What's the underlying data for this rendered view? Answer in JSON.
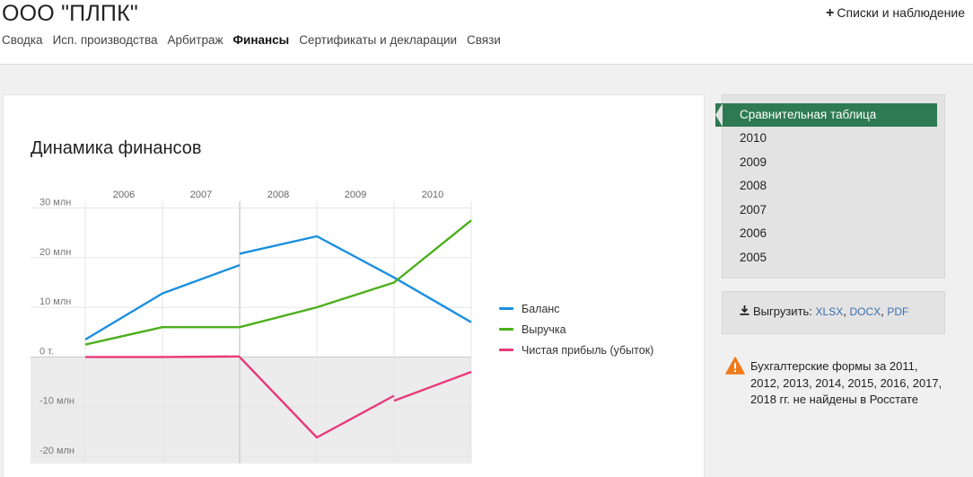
{
  "header": {
    "company_name": "ООО \"ПЛПК\"",
    "lists_label": "Списки и наблюдение",
    "nav": [
      {
        "label": "Сводка",
        "active": false
      },
      {
        "label": "Исп. производства",
        "active": false
      },
      {
        "label": "Арбитраж",
        "active": false
      },
      {
        "label": "Финансы",
        "active": true
      },
      {
        "label": "Сертификаты и декларации",
        "active": false
      },
      {
        "label": "Связи",
        "active": false
      }
    ]
  },
  "finance": {
    "title": "Динамика финансов"
  },
  "chart_data": {
    "type": "line",
    "title": "Динамика финансов",
    "categories": [
      "2006",
      "2007",
      "2008",
      "2009",
      "2010"
    ],
    "y_tick_labels": [
      "30 млн",
      "20 млн",
      "10 млн",
      "0 т.",
      "-10 млн",
      "-20 млн"
    ],
    "y_ticks": [
      30,
      20,
      10,
      0,
      -10,
      -20
    ],
    "ylim": [
      -20,
      30
    ],
    "y_unit": "млн",
    "legend_position": "right",
    "series": [
      {
        "name": "Баланс",
        "color": "#1a8fe0",
        "segments": [
          [
            [
              2005.5,
              3.5
            ],
            [
              2006.5,
              12.8
            ],
            [
              2007.5,
              18.5
            ]
          ],
          [
            [
              2007.5,
              20.8
            ],
            [
              2008.5,
              24.3
            ],
            [
              2009.5,
              16.0
            ],
            [
              2010.5,
              7.0
            ]
          ]
        ]
      },
      {
        "name": "Выручка",
        "color": "#4caf1c",
        "segments": [
          [
            [
              2005.5,
              2.5
            ],
            [
              2006.5,
              6.0
            ],
            [
              2007.5,
              6.0
            ],
            [
              2008.5,
              10.0
            ],
            [
              2009.5,
              15.0
            ],
            [
              2010.5,
              27.5
            ]
          ]
        ]
      },
      {
        "name": "Чистая прибыль (убыток)",
        "color": "#e8397b",
        "segments": [
          [
            [
              2005.5,
              0
            ],
            [
              2006.5,
              0
            ],
            [
              2007.5,
              0.1
            ]
          ],
          [
            [
              2007.5,
              0
            ],
            [
              2008.5,
              -16.2
            ],
            [
              2009.5,
              -7.8
            ]
          ],
          [
            [
              2009.5,
              -8.8
            ],
            [
              2010.5,
              -3.0
            ]
          ]
        ]
      }
    ]
  },
  "sidebar": {
    "active_label": "Сравнительная таблица",
    "years": [
      "2010",
      "2009",
      "2008",
      "2007",
      "2006",
      "2005"
    ]
  },
  "export": {
    "label": "Выгрузить:",
    "formats": [
      "XLSX",
      "DOCX",
      "PDF"
    ],
    "separator": ", "
  },
  "warning": {
    "icon": "warning-triangle-icon",
    "color": "#f07a1a",
    "text": "Бухгалтерские формы за 2011, 2012, 2013, 2014, 2015, 2016, 2017, 2018 гг. не найдены в Росстате"
  }
}
